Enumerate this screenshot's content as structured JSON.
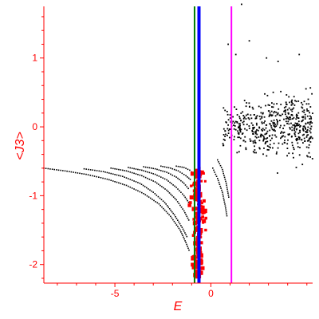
{
  "chart_data": {
    "type": "scatter",
    "title": "",
    "xlabel": "E",
    "ylabel": "<J3>",
    "xlim": [
      -8.7,
      5.3
    ],
    "ylim": [
      -2.27,
      1.75
    ],
    "xticks": [
      -5,
      0
    ],
    "xtick_labels": [
      "-5",
      "0"
    ],
    "yticks": [
      1,
      0,
      -1,
      -2
    ],
    "ytick_labels": [
      "1",
      "0",
      "-1",
      "-2"
    ],
    "grid": false,
    "colors": {
      "axis": "#ff0000",
      "black_points": "#000000",
      "red_points": "#ff0000",
      "line_green": "#008000",
      "line_blue": "#0000ff",
      "line_magenta": "#ff00ff"
    },
    "vertical_lines": [
      {
        "x": -0.85,
        "color": "#008000"
      },
      {
        "x": -0.62,
        "color": "#0000ff"
      },
      {
        "x": 1.07,
        "color": "#ff00ff"
      }
    ],
    "curves": [
      {
        "points": [
          [
            -8.7,
            -0.6
          ],
          [
            -7.6,
            -0.64
          ],
          [
            -6.5,
            -0.69
          ],
          [
            -5.4,
            -0.76
          ],
          [
            -4.4,
            -0.85
          ],
          [
            -3.5,
            -0.97
          ],
          [
            -2.7,
            -1.12
          ],
          [
            -2.1,
            -1.3
          ],
          [
            -1.6,
            -1.5
          ],
          [
            -1.3,
            -1.68
          ],
          [
            -1.1,
            -1.82
          ]
        ]
      },
      {
        "points": [
          [
            -6.6,
            -0.61
          ],
          [
            -5.6,
            -0.65
          ],
          [
            -4.6,
            -0.72
          ],
          [
            -3.7,
            -0.82
          ],
          [
            -3.0,
            -0.95
          ],
          [
            -2.4,
            -1.1
          ],
          [
            -1.9,
            -1.28
          ],
          [
            -1.5,
            -1.46
          ],
          [
            -1.2,
            -1.62
          ]
        ]
      },
      {
        "points": [
          [
            -5.2,
            -0.6
          ],
          [
            -4.4,
            -0.64
          ],
          [
            -3.6,
            -0.71
          ],
          [
            -2.9,
            -0.8
          ],
          [
            -2.3,
            -0.92
          ],
          [
            -1.8,
            -1.06
          ],
          [
            -1.4,
            -1.22
          ],
          [
            -1.1,
            -1.38
          ]
        ]
      },
      {
        "points": [
          [
            -4.3,
            -0.59
          ],
          [
            -3.6,
            -0.63
          ],
          [
            -2.9,
            -0.69
          ],
          [
            -2.3,
            -0.77
          ],
          [
            -1.8,
            -0.88
          ],
          [
            -1.4,
            -1.0
          ],
          [
            -1.1,
            -1.12
          ]
        ]
      },
      {
        "points": [
          [
            -3.5,
            -0.58
          ],
          [
            -2.9,
            -0.61
          ],
          [
            -2.3,
            -0.66
          ],
          [
            -1.8,
            -0.73
          ],
          [
            -1.4,
            -0.82
          ],
          [
            -1.1,
            -0.92
          ]
        ]
      },
      {
        "points": [
          [
            -2.6,
            -0.57
          ],
          [
            -2.1,
            -0.6
          ],
          [
            -1.7,
            -0.64
          ],
          [
            -1.3,
            -0.71
          ],
          [
            -1.0,
            -0.78
          ]
        ]
      },
      {
        "points": [
          [
            -1.8,
            -0.57
          ],
          [
            -1.4,
            -0.59
          ],
          [
            -1.1,
            -0.63
          ],
          [
            -0.9,
            -0.68
          ]
        ]
      },
      {
        "points": [
          [
            0.1,
            -0.6
          ],
          [
            0.35,
            -0.75
          ],
          [
            0.6,
            -0.95
          ],
          [
            0.75,
            -1.15
          ],
          [
            0.85,
            -1.32
          ]
        ]
      },
      {
        "points": [
          [
            0.35,
            -0.48
          ],
          [
            0.6,
            -0.62
          ],
          [
            0.8,
            -0.82
          ],
          [
            0.95,
            -1.05
          ]
        ]
      }
    ],
    "cloud": {
      "x_range": [
        0.6,
        5.3
      ],
      "y_center": 0.0,
      "y_spread": 0.55,
      "count": 520
    },
    "red_band": {
      "x_center": -0.65,
      "x_spread": 0.45,
      "y_range": [
        -2.2,
        -0.6
      ],
      "count": 170
    }
  }
}
